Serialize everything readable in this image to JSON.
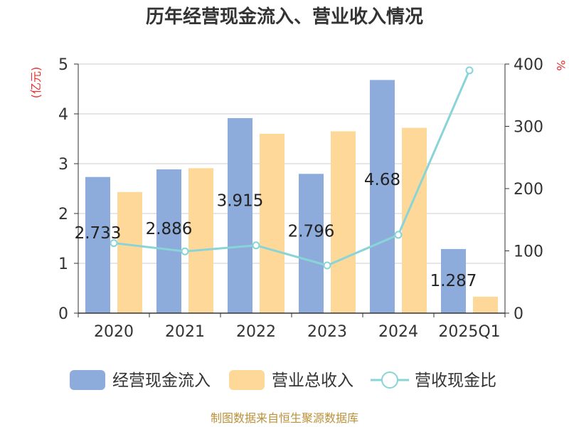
{
  "chart_data": {
    "type": "bar",
    "title": "历年经营现金流入、营业收入情况",
    "categories": [
      "2020",
      "2021",
      "2022",
      "2023",
      "2024",
      "2025Q1"
    ],
    "left_axis": {
      "unit": "(亿元)",
      "ticks": [
        "0",
        "1",
        "2",
        "3",
        "4",
        "5"
      ],
      "ylim": [
        0,
        5
      ]
    },
    "right_axis": {
      "unit": "%",
      "ticks": [
        "0",
        "100",
        "200",
        "300",
        "400"
      ],
      "ylim": [
        0,
        400
      ]
    },
    "series": [
      {
        "name": "经营现金流入",
        "type": "bar",
        "axis": "left",
        "color": "#8eacdb",
        "values": [
          2.733,
          2.886,
          3.915,
          2.796,
          4.68,
          1.287
        ],
        "labels": [
          "2.733",
          "2.886",
          "3.915",
          "2.796",
          "4.68",
          "1.287"
        ]
      },
      {
        "name": "营业总收入",
        "type": "bar",
        "axis": "left",
        "color": "#fed898",
        "values": [
          2.43,
          2.91,
          3.6,
          3.65,
          3.72,
          0.33
        ]
      },
      {
        "name": "营收现金比",
        "type": "line",
        "axis": "right",
        "color": "#88d4d8",
        "values": [
          112.5,
          99.2,
          108.8,
          76.6,
          125.8,
          389.9
        ]
      }
    ],
    "grid": true,
    "legend": "bottom",
    "source": "制图数据来自恒生聚源数据库"
  }
}
